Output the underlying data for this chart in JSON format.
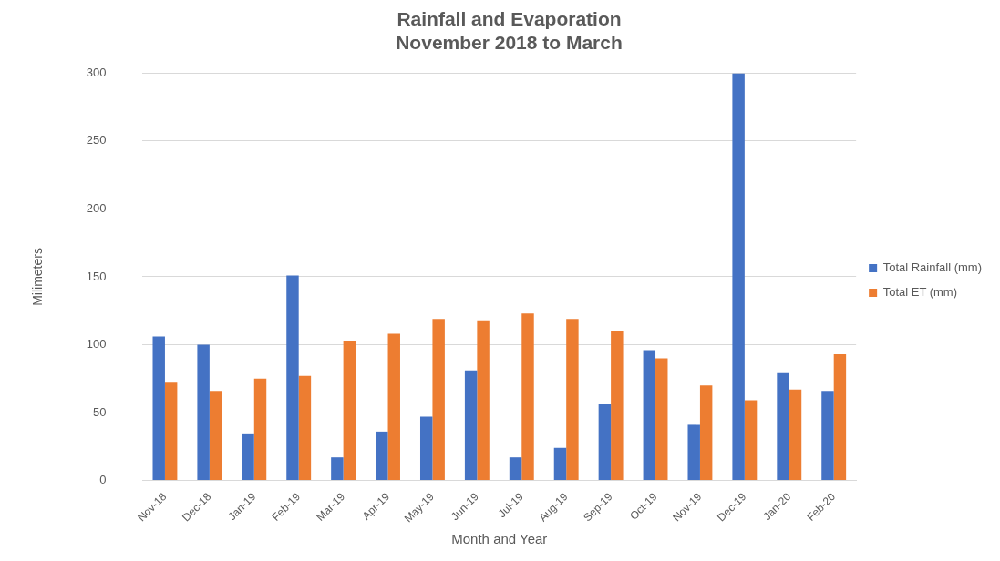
{
  "chart_data": {
    "type": "bar",
    "title": "Rainfall and Evaporation",
    "subtitle": "November 2018 to March",
    "xlabel": "Month and Year",
    "ylabel": "Milimeters",
    "categories": [
      "Nov-18",
      "Dec-18",
      "Jan-19",
      "Feb-19",
      "Mar-19",
      "Apr-19",
      "May-19",
      "Jun-19",
      "Jul-19",
      "Aug-19",
      "Sep-19",
      "Oct-19",
      "Nov-19",
      "Dec-19",
      "Jan-20",
      "Feb-20"
    ],
    "series": [
      {
        "name": "Total Rainfall (mm)",
        "color": "#4472c4",
        "values": [
          106,
          100,
          34,
          151,
          17,
          36,
          47,
          81,
          17,
          24,
          56,
          96,
          41,
          300,
          79,
          66
        ]
      },
      {
        "name": "Total ET (mm)",
        "color": "#ed7d31",
        "values": [
          72,
          66,
          75,
          77,
          103,
          108,
          119,
          118,
          123,
          119,
          110,
          90,
          70,
          59,
          67,
          93
        ]
      }
    ],
    "ylim": [
      0,
      300
    ],
    "yticks": [
      0,
      50,
      100,
      150,
      200,
      250,
      300
    ],
    "grid": "y",
    "legend": "right"
  }
}
